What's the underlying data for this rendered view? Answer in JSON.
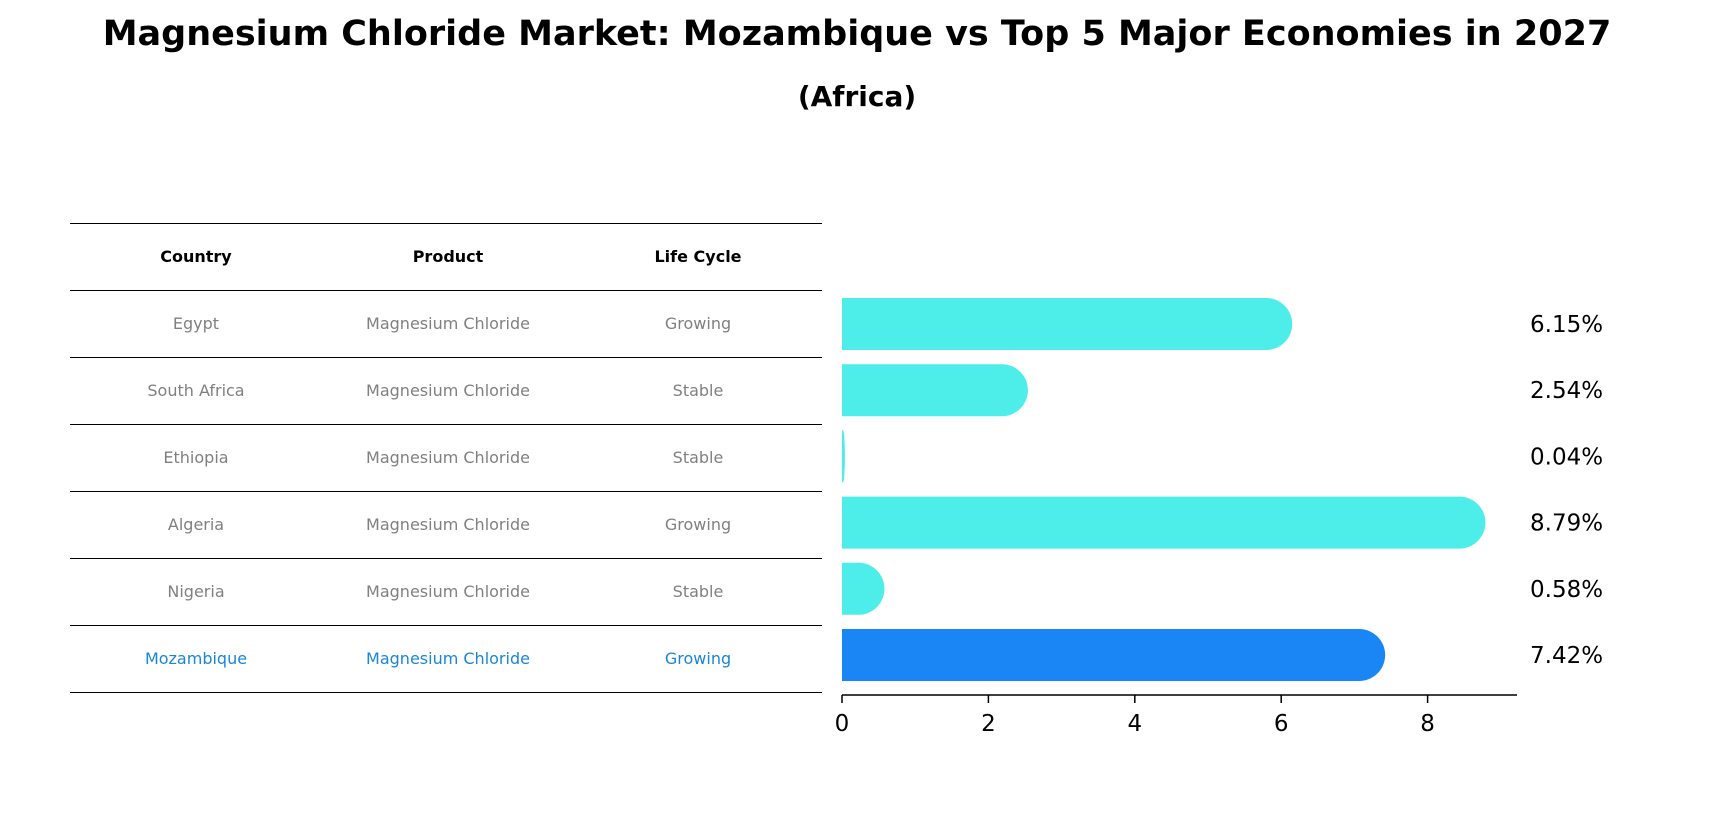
{
  "title": "Magnesium Chloride Market: Mozambique vs Top 5 Major Economies in 2027",
  "subtitle": "(Africa)",
  "table": {
    "headers": [
      "Country",
      "Product",
      "Life Cycle"
    ],
    "rows": [
      {
        "country": "Egypt",
        "product": "Magnesium Chloride",
        "life_cycle": "Growing"
      },
      {
        "country": "South Africa",
        "product": "Magnesium Chloride",
        "life_cycle": "Stable"
      },
      {
        "country": "Ethiopia",
        "product": "Magnesium Chloride",
        "life_cycle": "Stable"
      },
      {
        "country": "Algeria",
        "product": "Magnesium Chloride",
        "life_cycle": "Growing"
      },
      {
        "country": "Nigeria",
        "product": "Magnesium Chloride",
        "life_cycle": "Stable"
      },
      {
        "country": "Mozambique",
        "product": "Magnesium Chloride",
        "life_cycle": "Growing"
      }
    ]
  },
  "chart_data": {
    "type": "bar",
    "orientation": "horizontal",
    "categories": [
      "Egypt",
      "South Africa",
      "Ethiopia",
      "Algeria",
      "Nigeria",
      "Mozambique"
    ],
    "values": [
      6.15,
      2.54,
      0.04,
      8.79,
      0.58,
      7.42
    ],
    "value_labels": [
      "6.15%",
      "2.54%",
      "0.04%",
      "8.79%",
      "0.58%",
      "7.42%"
    ],
    "highlight": "Mozambique",
    "xlim": [
      0,
      9.2
    ],
    "xticks": [
      0,
      2,
      4,
      6,
      8
    ],
    "colors": {
      "default": "#4dedea",
      "highlight": "#1a86f5"
    },
    "grid": false
  }
}
